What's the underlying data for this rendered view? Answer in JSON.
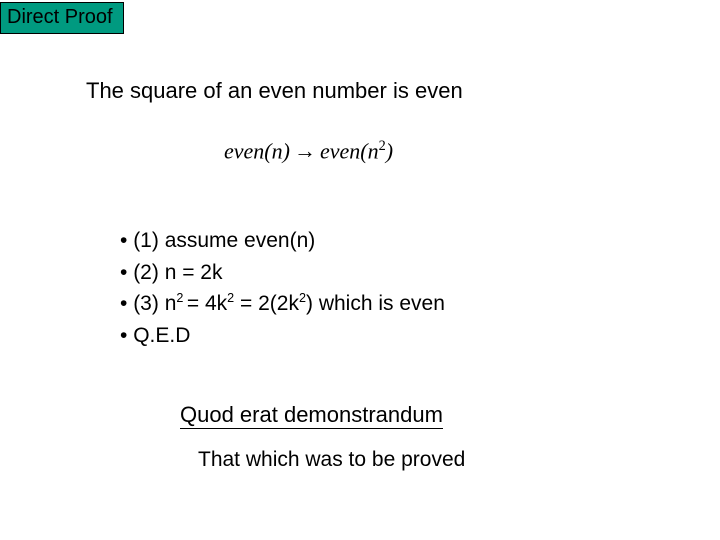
{
  "title": "Direct Proof",
  "statement": "The square of an even number is even",
  "formula": {
    "lhs_func": "even",
    "lhs_arg": "n",
    "rhs_func": "even",
    "rhs_arg_base": "n",
    "rhs_arg_exp": "2"
  },
  "steps": {
    "s1": "(1) assume even(n)",
    "s2": "(2) n = 2k",
    "s3_prefix": "(3) n",
    "s3_exp1": "2 ",
    "s3_mid1": "= 4k",
    "s3_exp2": "2",
    "s3_mid2": " = 2(2k",
    "s3_exp3": "2",
    "s3_suffix": ") which is even",
    "s4": "Q.E.D"
  },
  "latin": "Quod erat demonstrandum",
  "english": "That which was to be proved",
  "colors": {
    "title_bg": "#009a80",
    "text": "#000000",
    "background": "#ffffff"
  }
}
